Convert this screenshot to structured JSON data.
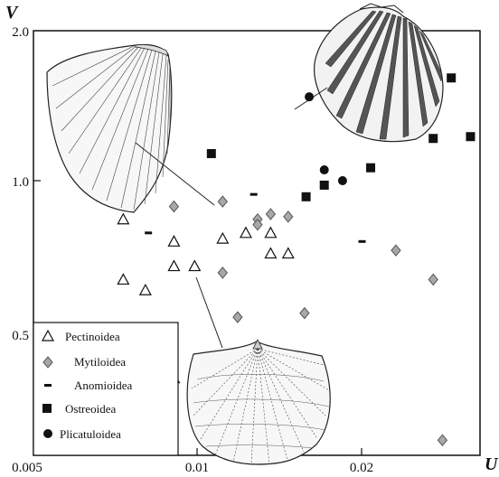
{
  "chart_data": {
    "type": "scatter",
    "title": "",
    "xlabel": "U",
    "ylabel": "V",
    "xscale": "log",
    "yscale": "log",
    "xlim": [
      0.005,
      0.0295
    ],
    "ylim": [
      0.33,
      2.0
    ],
    "x_ticks": [
      {
        "value": 0.005,
        "label": "0.005"
      },
      {
        "value": 0.01,
        "label": "0.01"
      },
      {
        "value": 0.02,
        "label": "0.02"
      }
    ],
    "y_ticks": [
      {
        "value": 0.5,
        "label": "0.5"
      },
      {
        "value": 1.0,
        "label": "1.0"
      },
      {
        "value": 2.0,
        "label": "2.0"
      }
    ],
    "grid": false,
    "legend_position": "bottom-left",
    "colors": {
      "axis": "#111111",
      "mytiloidea_fill": "#a8a8a8",
      "marker_black": "#111111"
    },
    "series": [
      {
        "name": "Pectinoidea",
        "marker": "triangle-open",
        "points": [
          [
            0.0074,
            0.84
          ],
          [
            0.0074,
            0.64
          ],
          [
            0.0081,
            0.61
          ],
          [
            0.0091,
            0.76
          ],
          [
            0.0091,
            0.68
          ],
          [
            0.0091,
            0.41
          ],
          [
            0.0099,
            0.68
          ],
          [
            0.0111,
            0.77
          ],
          [
            0.0122,
            0.79
          ],
          [
            0.0135,
            0.79
          ],
          [
            0.0135,
            0.72
          ],
          [
            0.0145,
            0.72
          ]
        ]
      },
      {
        "name": "Mytiloidea",
        "marker": "diamond-gray",
        "points": [
          [
            0.0091,
            0.89
          ],
          [
            0.0111,
            0.91
          ],
          [
            0.0111,
            0.66
          ],
          [
            0.0128,
            0.84
          ],
          [
            0.0128,
            0.82
          ],
          [
            0.0135,
            0.86
          ],
          [
            0.0145,
            0.85
          ],
          [
            0.0118,
            0.54
          ],
          [
            0.0155,
            0.55
          ],
          [
            0.0225,
            0.73
          ],
          [
            0.0262,
            0.64
          ],
          [
            0.0272,
            0.31
          ]
        ]
      },
      {
        "name": "Anomioidea",
        "marker": "dash",
        "points": [
          [
            0.0082,
            0.79
          ],
          [
            0.0126,
            0.94
          ],
          [
            0.0196,
            0.76
          ]
        ]
      },
      {
        "name": "Ostreoidea",
        "marker": "square-filled",
        "points": [
          [
            0.0106,
            1.13
          ],
          [
            0.0156,
            0.93
          ],
          [
            0.0168,
            0.98
          ],
          [
            0.0203,
            1.06
          ],
          [
            0.0262,
            1.21
          ],
          [
            0.0282,
            1.59
          ],
          [
            0.0305,
            1.22
          ]
        ]
      },
      {
        "name": "Plicatuloidea",
        "marker": "circle-filled",
        "points": [
          [
            0.0158,
            1.46
          ],
          [
            0.0168,
            1.05
          ],
          [
            0.0181,
            1.0
          ]
        ]
      }
    ]
  }
}
